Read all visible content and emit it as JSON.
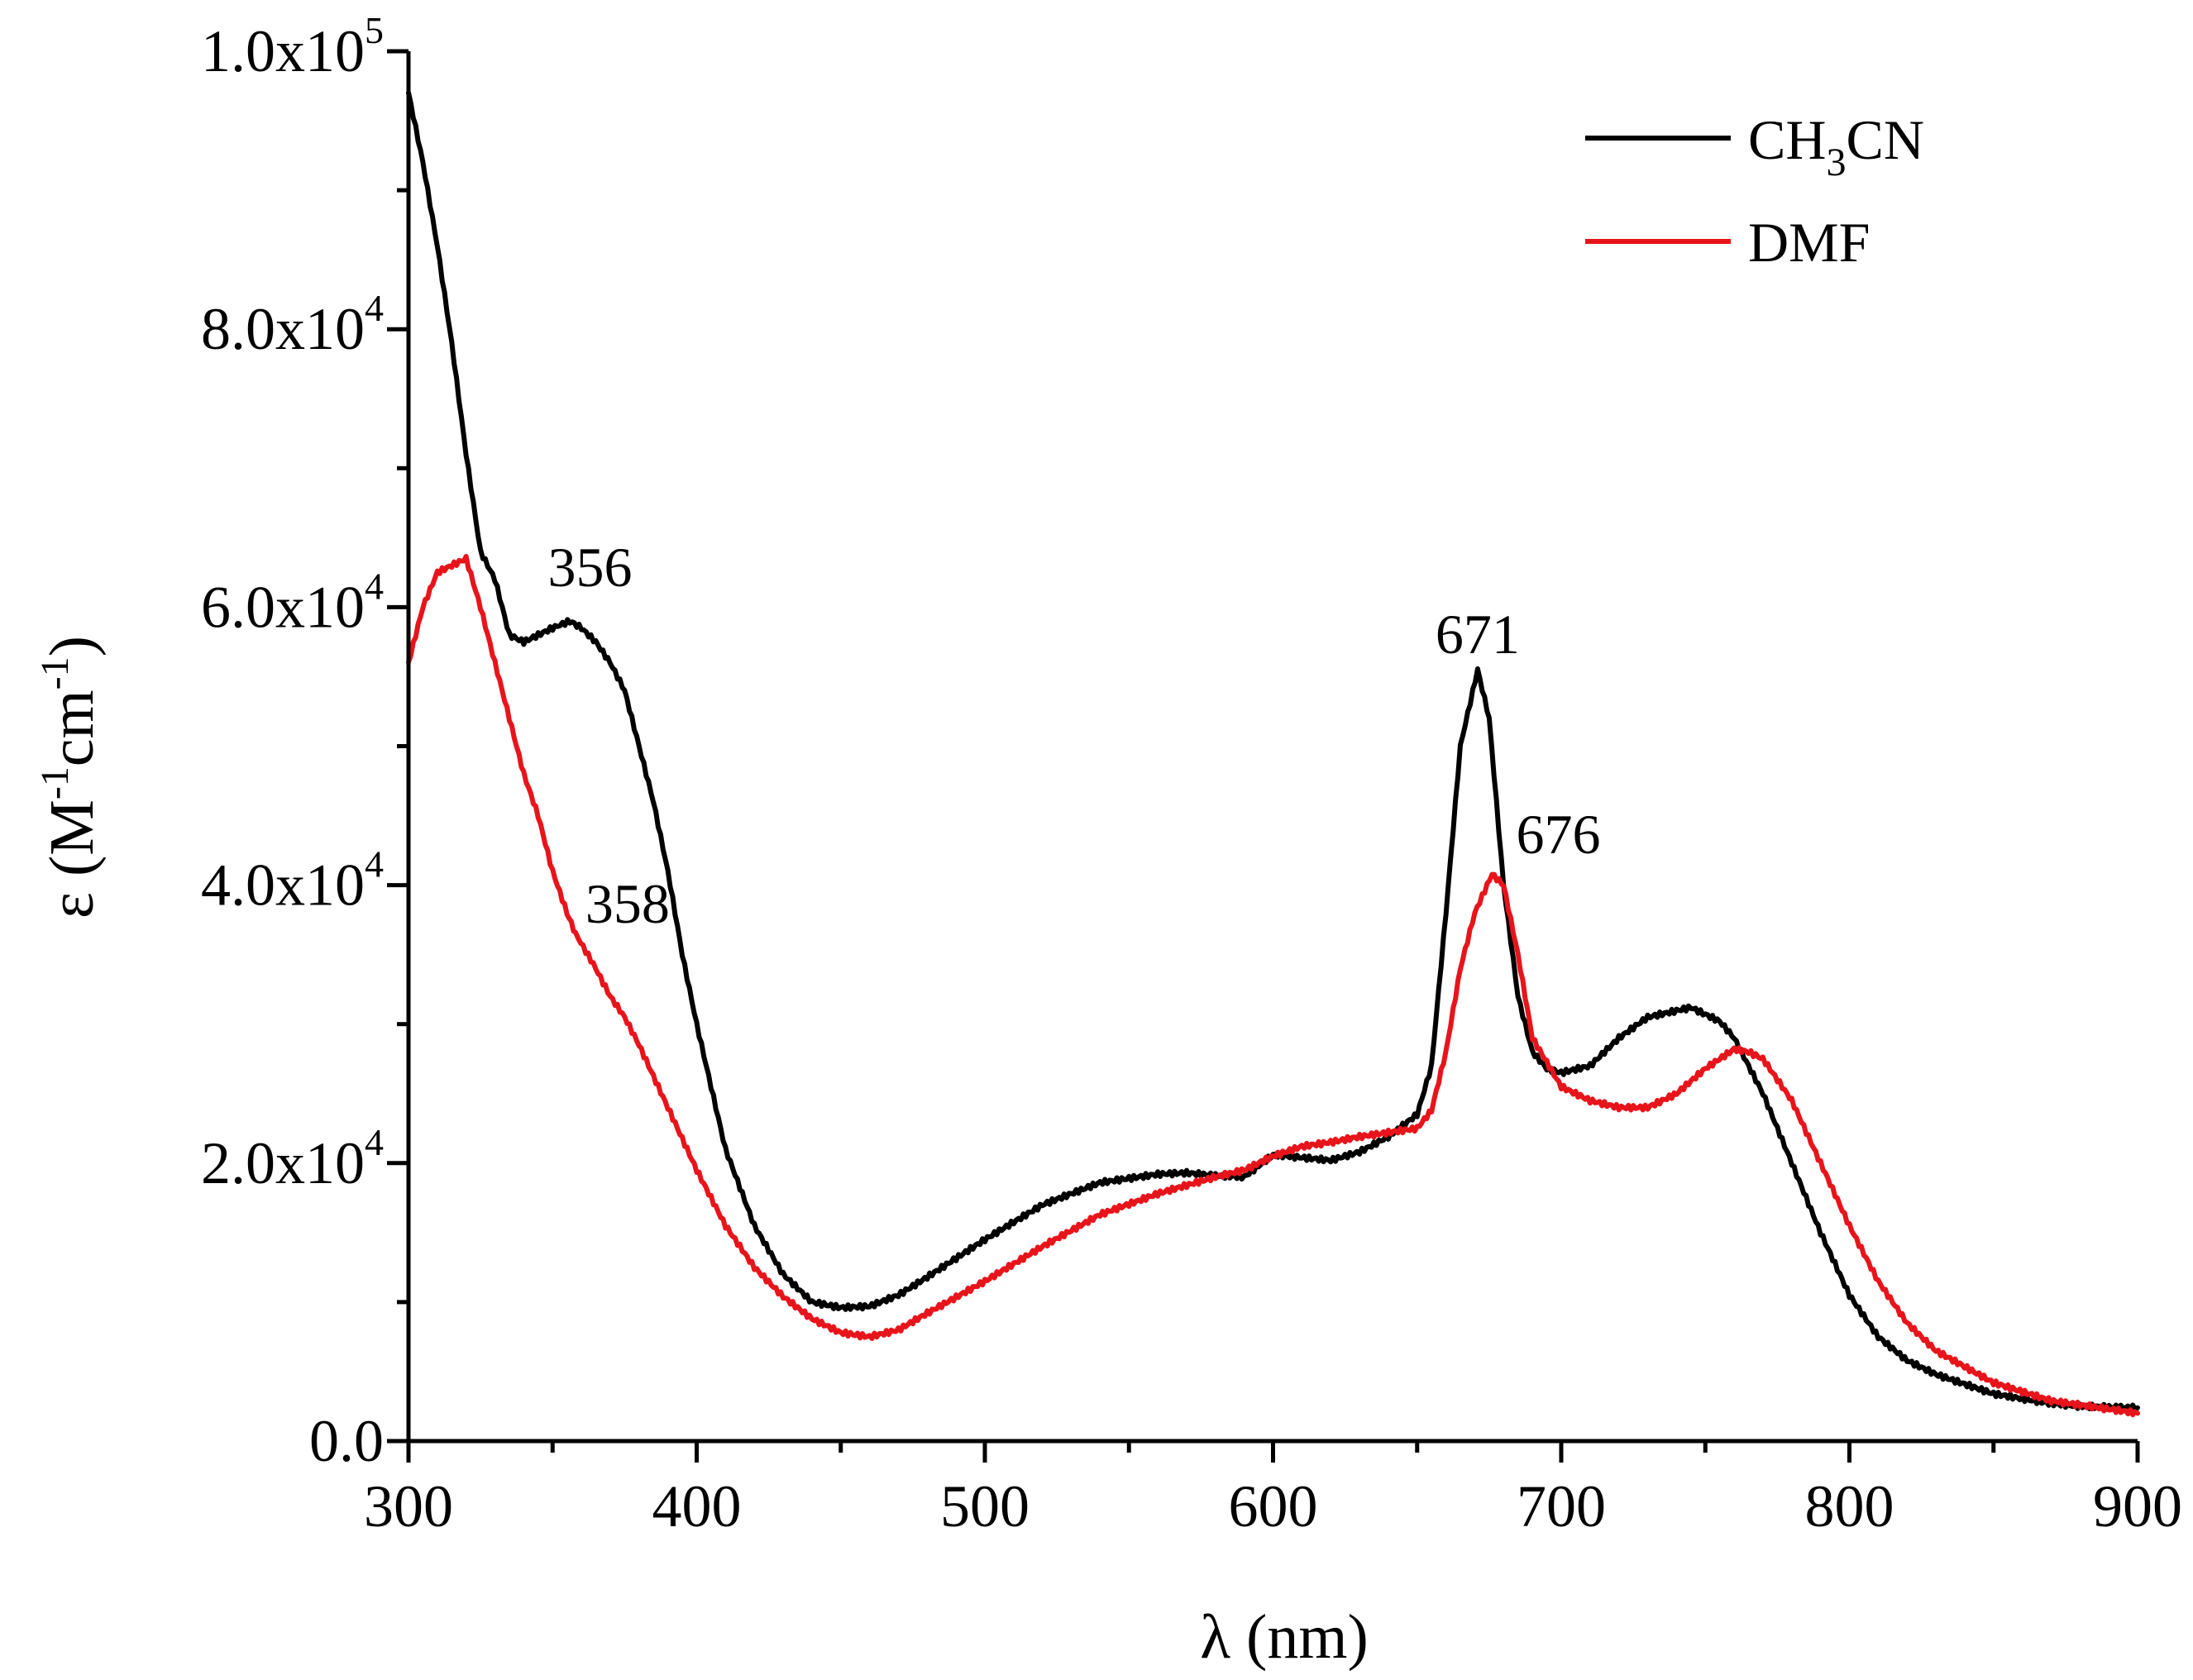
{
  "chart_data": {
    "type": "line",
    "title": "",
    "xlabel": "λ (nm)",
    "ylabel_prefix": "ε (M",
    "ylabel_sup1": "-1",
    "ylabel_mid": "cm",
    "ylabel_sup2": "-1",
    "ylabel_suffix": ")",
    "xlim": [
      300,
      900
    ],
    "ylim": [
      0,
      100000
    ],
    "x_ticks": [
      300,
      400,
      500,
      600,
      700,
      800,
      900
    ],
    "x_tick_labels": [
      "300",
      "400",
      "500",
      "600",
      "700",
      "800",
      "900"
    ],
    "y_ticks": [
      0,
      20000,
      40000,
      60000,
      80000,
      100000
    ],
    "y_tick_labels": [
      {
        "mant": "0.0",
        "exp": ""
      },
      {
        "mant": "2.0x10",
        "exp": "4"
      },
      {
        "mant": "4.0x10",
        "exp": "4"
      },
      {
        "mant": "6.0x10",
        "exp": "4"
      },
      {
        "mant": "8.0x10",
        "exp": "4"
      },
      {
        "mant": "1.0x10",
        "exp": "5"
      }
    ],
    "legend": {
      "position": "top-right",
      "entries": [
        {
          "pre": "CH",
          "sub": "3",
          "post": "CN",
          "color": "#000000"
        },
        {
          "pre": "DMF",
          "sub": "",
          "post": "",
          "color": "#e8141b"
        }
      ]
    },
    "series": [
      {
        "name": "CH3CN",
        "color": "#000000",
        "x": [
          300,
          305,
          310,
          315,
          320,
          325,
          330,
          335,
          340,
          345,
          350,
          356,
          360,
          365,
          370,
          375,
          380,
          385,
          390,
          395,
          400,
          410,
          420,
          430,
          440,
          450,
          460,
          470,
          480,
          500,
          520,
          540,
          560,
          570,
          580,
          590,
          600,
          610,
          620,
          630,
          640,
          650,
          655,
          660,
          665,
          671,
          675,
          680,
          685,
          690,
          695,
          700,
          710,
          720,
          730,
          745,
          755,
          760,
          770,
          780,
          790,
          800,
          810,
          820,
          830,
          850,
          870,
          880,
          900
        ],
        "y": [
          97000,
          92000,
          86000,
          79000,
          71000,
          64000,
          62000,
          58000,
          57500,
          58000,
          58500,
          59000,
          58500,
          57500,
          56000,
          54000,
          50000,
          46000,
          41000,
          35000,
          30000,
          21000,
          15500,
          12000,
          10000,
          9600,
          9700,
          10500,
          11800,
          14500,
          17000,
          18600,
          19200,
          19300,
          19100,
          19000,
          20600,
          20400,
          20200,
          20800,
          21900,
          23500,
          27000,
          38000,
          50000,
          55500,
          52000,
          40000,
          32000,
          28000,
          26800,
          26500,
          27000,
          29000,
          30500,
          31200,
          30200,
          29000,
          25000,
          20000,
          15000,
          10500,
          7500,
          5800,
          4800,
          3400,
          2700,
          2500,
          2400
        ]
      },
      {
        "name": "DMF",
        "color": "#e8141b",
        "x": [
          300,
          305,
          310,
          315,
          320,
          325,
          330,
          335,
          340,
          345,
          350,
          355,
          358,
          365,
          370,
          375,
          380,
          390,
          400,
          410,
          420,
          430,
          440,
          450,
          460,
          470,
          480,
          500,
          520,
          540,
          560,
          580,
          590,
          600,
          610,
          620,
          630,
          640,
          650,
          655,
          660,
          665,
          670,
          676,
          680,
          685,
          690,
          700,
          710,
          720,
          730,
          740,
          750,
          760,
          765,
          770,
          780,
          790,
          800,
          810,
          820,
          830,
          850,
          870,
          900
        ],
        "y": [
          56000,
          60000,
          62500,
          63000,
          63500,
          60000,
          56000,
          52000,
          48000,
          45000,
          41000,
          38000,
          36500,
          34000,
          32000,
          30500,
          28500,
          24000,
          19500,
          15500,
          12500,
          10400,
          8800,
          7800,
          7500,
          8000,
          9200,
          11500,
          14000,
          16300,
          17800,
          19000,
          19500,
          20500,
          21200,
          21500,
          21900,
          22200,
          22500,
          23800,
          28000,
          34000,
          38000,
          40800,
          40000,
          35000,
          29000,
          25500,
          24500,
          24000,
          24000,
          25000,
          26800,
          28200,
          28000,
          27500,
          24500,
          20000,
          15500,
          11500,
          8500,
          6500,
          4200,
          2900,
          2000
        ]
      }
    ],
    "annotations": [
      {
        "text": "356",
        "x": 363,
        "y": 61500,
        "color": "#000000"
      },
      {
        "text": "358",
        "x": 376,
        "y": 37300,
        "color": "#e8141b"
      },
      {
        "text": "671",
        "x": 671,
        "y": 56700,
        "color": "#000000"
      },
      {
        "text": "676",
        "x": 699,
        "y": 42300,
        "color": "#e8141b"
      }
    ]
  }
}
